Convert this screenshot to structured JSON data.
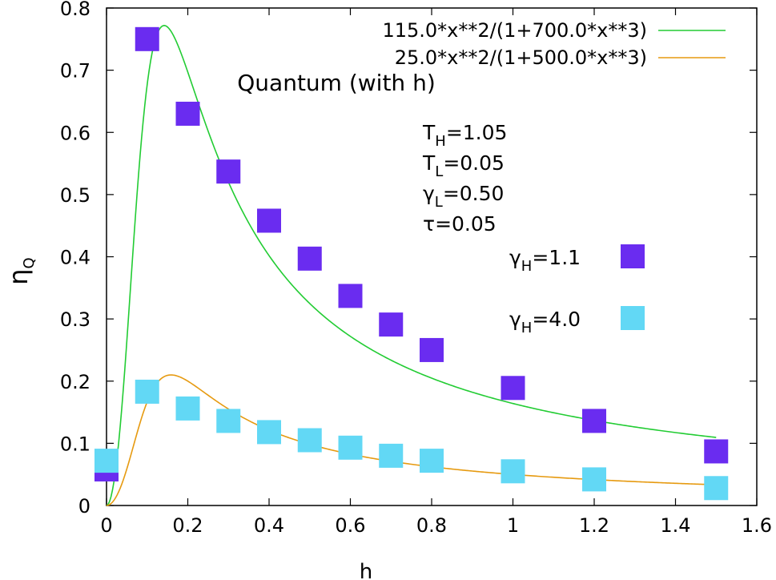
{
  "chart_data": {
    "type": "scatter",
    "title": "Quantum (with h)",
    "xlabel": "h",
    "ylabel_main": "η",
    "ylabel_sub": "Q",
    "xlim": [
      0,
      1.6
    ],
    "ylim": [
      0,
      0.8
    ],
    "xticks": [
      "0",
      "0.2",
      "0.4",
      "0.6",
      "0.8",
      "1",
      "1.2",
      "1.4",
      "1.6"
    ],
    "yticks": [
      "0",
      "0.1",
      "0.2",
      "0.3",
      "0.4",
      "0.5",
      "0.6",
      "0.7",
      "0.8"
    ],
    "grid": false,
    "legend_position": "top-right",
    "params": [
      {
        "main": "T",
        "sub": "H",
        "value": "=1.05"
      },
      {
        "main": "T",
        "sub": "L",
        "value": "=0.05"
      },
      {
        "main": "γ",
        "sub": "L",
        "value": "=0.50"
      },
      {
        "main": "τ",
        "sub": "",
        "value": "=0.05"
      }
    ],
    "series": [
      {
        "name_main": "γ",
        "name_sub": "H",
        "name_value": "=1.1",
        "kind": "points",
        "color": "#6a2cf0",
        "x": [
          0,
          0.1,
          0.2,
          0.3,
          0.4,
          0.5,
          0.6,
          0.7,
          0.8,
          1.0,
          1.2,
          1.5
        ],
        "y": [
          0.058,
          0.75,
          0.63,
          0.537,
          0.458,
          0.397,
          0.337,
          0.291,
          0.25,
          0.189,
          0.136,
          0.087
        ]
      },
      {
        "name_main": "γ",
        "name_sub": "H",
        "name_value": "=4.0",
        "kind": "points",
        "color": "#62d8f5",
        "x": [
          0,
          0.1,
          0.2,
          0.3,
          0.4,
          0.5,
          0.6,
          0.7,
          0.8,
          1.0,
          1.2,
          1.5
        ],
        "y": [
          0.072,
          0.183,
          0.156,
          0.136,
          0.118,
          0.105,
          0.093,
          0.08,
          0.072,
          0.055,
          0.042,
          0.028
        ]
      },
      {
        "name": "115.0*x**2/(1+700.0*x**3)",
        "kind": "curve",
        "color": "#22cc33",
        "a": 115.0,
        "b": 700.0,
        "xrange": [
          0,
          1.5
        ]
      },
      {
        "name": "25.0*x**2/(1+500.0*x**3)",
        "kind": "curve",
        "color": "#e69a10",
        "a": 25.0,
        "b": 500.0,
        "xrange": [
          0,
          1.5
        ]
      }
    ]
  }
}
